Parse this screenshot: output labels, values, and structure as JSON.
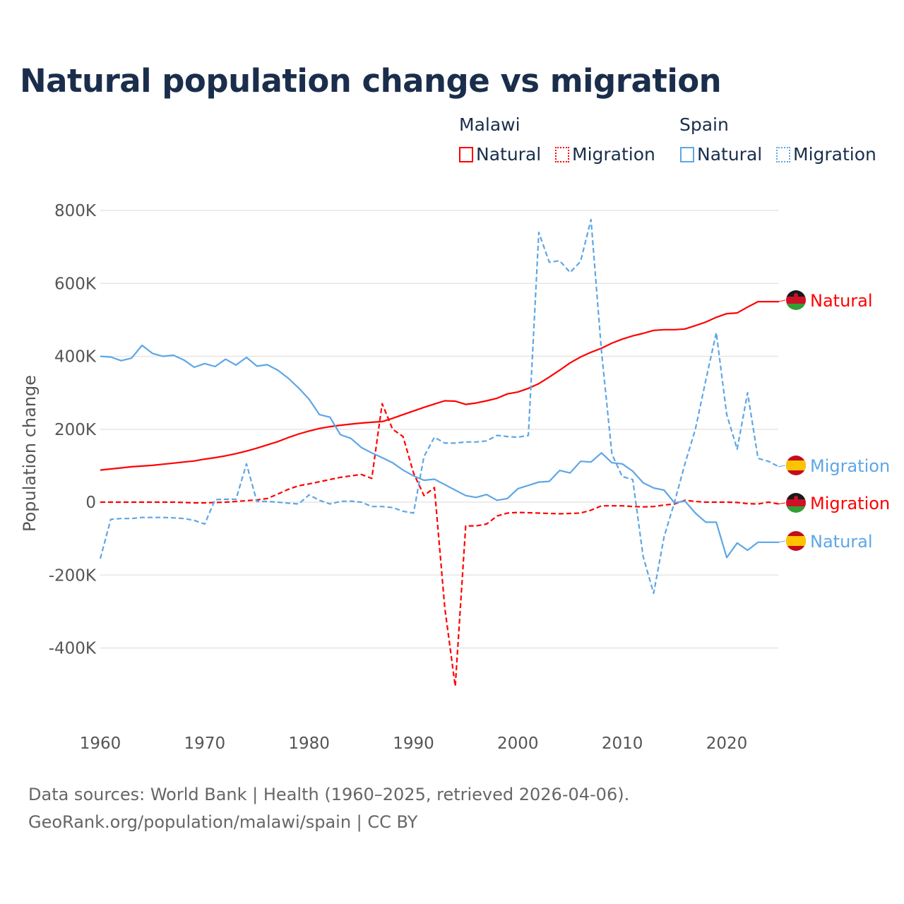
{
  "title": "Natural population change vs migration",
  "legend": {
    "groups": [
      {
        "name": "Malawi",
        "items": [
          "Natural",
          "Migration"
        ],
        "color": "#ff0000"
      },
      {
        "name": "Spain",
        "items": [
          "Natural",
          "Migration"
        ],
        "color": "#5ea6e6"
      }
    ]
  },
  "footer": {
    "line1": "Data sources: World Bank | Health (1960–2025, retrieved 2026-04-06).",
    "line2": "GeoRank.org/population/malawi/spain | CC BY"
  },
  "chart_data": {
    "type": "line",
    "title": "Natural population change vs migration",
    "xlabel": "",
    "ylabel": "Population change",
    "xlim": [
      1960,
      2025
    ],
    "ylim": [
      -520000,
      800000
    ],
    "x_ticks": [
      "1960",
      "1970",
      "1980",
      "1990",
      "2000",
      "2010",
      "2020"
    ],
    "y_ticks": [
      {
        "value": 800000,
        "label": "800K"
      },
      {
        "value": 600000,
        "label": "600K"
      },
      {
        "value": 400000,
        "label": "400K"
      },
      {
        "value": 200000,
        "label": "200K"
      },
      {
        "value": 0,
        "label": "0"
      },
      {
        "value": -200000,
        "label": "-200K"
      },
      {
        "value": -400000,
        "label": "-400K"
      }
    ],
    "grid": true,
    "start_year": 1960,
    "units": "thousands",
    "series": [
      {
        "name": "Natural",
        "country": "Malawi",
        "color": "#ff0000",
        "dash": false,
        "end_label": "Natural",
        "values": [
          88,
          91,
          94,
          97,
          99,
          101,
          104,
          107,
          110,
          113,
          118,
          122,
          127,
          133,
          140,
          148,
          157,
          166,
          177,
          187,
          195,
          202,
          207,
          211,
          214,
          217,
          219,
          221,
          230,
          240,
          250,
          260,
          269,
          278,
          277,
          268,
          272,
          278,
          285,
          297,
          302,
          312,
          325,
          343,
          362,
          382,
          398,
          411,
          422,
          436,
          447,
          456,
          463,
          471,
          473,
          473,
          475,
          484,
          494,
          507,
          517,
          519,
          535,
          550,
          550,
          550
        ]
      },
      {
        "name": "Migration",
        "country": "Malawi",
        "color": "#ff0000",
        "dash": true,
        "end_label": "Migration",
        "values": [
          0,
          0,
          0,
          0,
          0,
          0,
          0,
          0,
          -1,
          -2,
          -2,
          -1,
          0,
          2,
          4,
          6,
          10,
          22,
          35,
          45,
          50,
          56,
          62,
          68,
          72,
          76,
          65,
          270,
          200,
          180,
          80,
          18,
          40,
          -290,
          -505,
          -65,
          -65,
          -60,
          -38,
          -30,
          -28,
          -29,
          -30,
          -31,
          -32,
          -31,
          -30,
          -22,
          -10,
          -10,
          -10,
          -12,
          -13,
          -12,
          -8,
          -5,
          5,
          2,
          0,
          0,
          0,
          -1,
          -4,
          -5,
          0,
          -5
        ]
      },
      {
        "name": "Natural",
        "country": "Spain",
        "color": "#5ea6e6",
        "dash": false,
        "end_label": "Natural",
        "values": [
          400,
          398,
          388,
          395,
          430,
          408,
          400,
          403,
          390,
          370,
          380,
          372,
          392,
          376,
          397,
          373,
          377,
          362,
          340,
          313,
          282,
          240,
          233,
          185,
          175,
          150,
          135,
          122,
          108,
          88,
          72,
          60,
          63,
          48,
          33,
          18,
          13,
          21,
          5,
          10,
          37,
          46,
          55,
          57,
          87,
          80,
          112,
          110,
          135,
          108,
          105,
          85,
          53,
          39,
          33,
          -2,
          3,
          -30,
          -55,
          -55,
          -152,
          -112,
          -132,
          -110,
          -110,
          -110
        ]
      },
      {
        "name": "Migration",
        "country": "Spain",
        "color": "#5ea6e6",
        "dash": true,
        "end_label": "Migration",
        "values": [
          -155,
          -47,
          -45,
          -45,
          -42,
          -42,
          -42,
          -43,
          -45,
          -50,
          -60,
          7,
          8,
          8,
          105,
          2,
          2,
          0,
          -3,
          -5,
          20,
          5,
          -5,
          2,
          3,
          0,
          -12,
          -12,
          -15,
          -25,
          -30,
          125,
          178,
          162,
          162,
          165,
          165,
          168,
          183,
          180,
          178,
          183,
          740,
          658,
          662,
          630,
          660,
          775,
          415,
          132,
          70,
          62,
          -150,
          -250,
          -95,
          0,
          105,
          200,
          335,
          465,
          240,
          145,
          300,
          120,
          112,
          97
        ]
      }
    ]
  }
}
